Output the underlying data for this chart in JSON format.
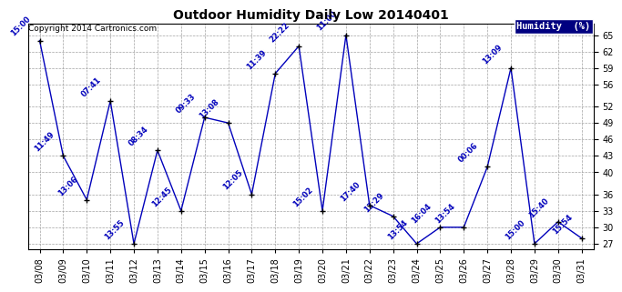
{
  "title": "Outdoor Humidity Daily Low 20140401",
  "copyright": "Copyright 2014 Cartronics.com",
  "legend_label": "Humidity  (%)",
  "background_color": "#ffffff",
  "plot_bg_color": "#ffffff",
  "line_color": "#0000bb",
  "marker_color": "#000000",
  "label_color": "#0000bb",
  "title_color": "#000000",
  "ylim": [
    26,
    67
  ],
  "yticks": [
    27,
    30,
    33,
    36,
    40,
    43,
    46,
    49,
    52,
    56,
    59,
    62,
    65
  ],
  "dates": [
    "03/08",
    "03/09",
    "03/10",
    "03/11",
    "03/12",
    "03/13",
    "03/14",
    "03/15",
    "03/16",
    "03/17",
    "03/18",
    "03/19",
    "03/20",
    "03/21",
    "03/22",
    "03/23",
    "03/24",
    "03/25",
    "03/26",
    "03/27",
    "03/28",
    "03/29",
    "03/30",
    "03/31"
  ],
  "values": [
    64,
    43,
    35,
    53,
    27,
    44,
    33,
    50,
    49,
    36,
    58,
    63,
    33,
    65,
    34,
    32,
    27,
    30,
    30,
    41,
    59,
    27,
    31,
    28
  ],
  "labels": [
    "15:00",
    "11:49",
    "13:06",
    "07:41",
    "13:55",
    "08:34",
    "12:45",
    "09:33",
    "13:08",
    "12:05",
    "11:39",
    "22:22",
    "15:02",
    "11:00",
    "17:40",
    "13:29",
    "13:54",
    "16:04",
    "13:54",
    "00:06",
    "13:09",
    "15:00",
    "15:40",
    "15:54"
  ],
  "title_fontsize": 10,
  "copyright_fontsize": 6.5,
  "label_fontsize": 6,
  "tick_fontsize": 7,
  "legend_fontsize": 7.5
}
